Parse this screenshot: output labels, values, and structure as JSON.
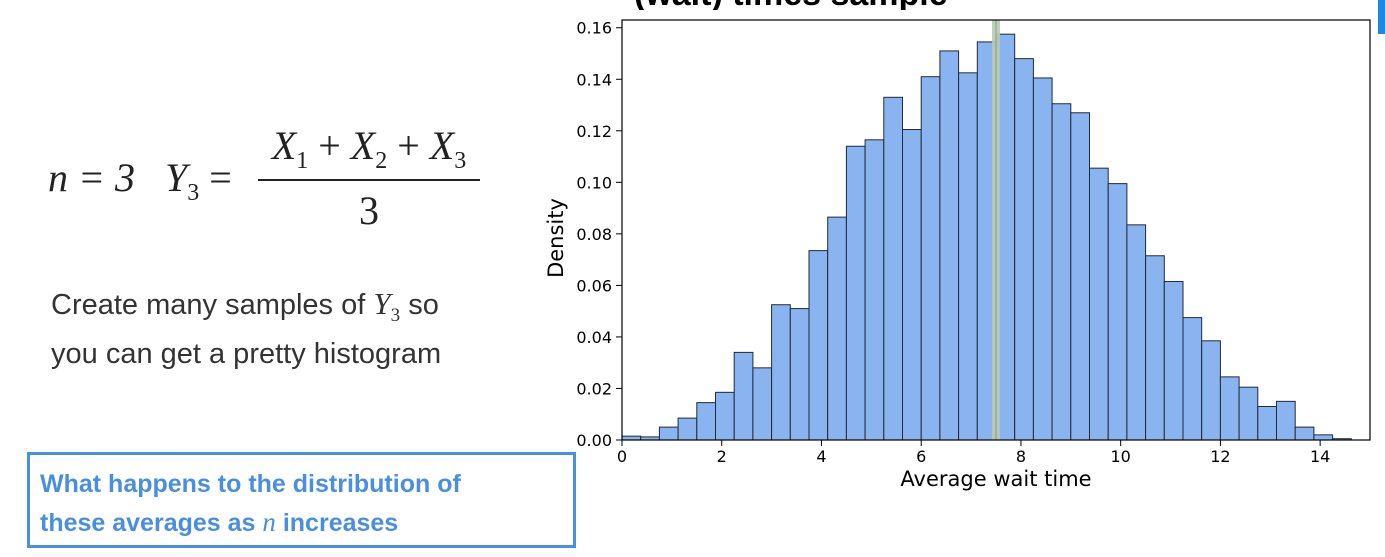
{
  "slide": {
    "title_fragment": "(wait) times sample",
    "formula": {
      "n_label": "n = 3",
      "lhs": "Y",
      "lhs_sub": "3",
      "numerator_terms": [
        {
          "var": "X",
          "sub": "1"
        },
        {
          "var": "X",
          "sub": "2"
        },
        {
          "var": "X",
          "sub": "3"
        }
      ],
      "operator": "+",
      "denominator": "3"
    },
    "description": {
      "before": "Create many samples of",
      "var": "Y",
      "var_sub": "3",
      "after": "so",
      "line2": "you can get a pretty histogram"
    },
    "question": {
      "line1": "What happens to the distribution of",
      "line2_before": "these averages as",
      "line2_var": "n",
      "line2_after": "increases"
    },
    "accent_color": "#1e88e5",
    "question_color": "#4a8ee0"
  },
  "chart_data": {
    "type": "bar",
    "title": "",
    "xlabel": "Average wait time",
    "ylabel": "Density",
    "xlim": [
      0,
      15
    ],
    "ylim": [
      0,
      0.163
    ],
    "bin_width": 0.375,
    "bin_start": 0,
    "values": [
      0.0015,
      0.0012,
      0.005,
      0.0085,
      0.0145,
      0.0185,
      0.034,
      0.028,
      0.0525,
      0.051,
      0.0735,
      0.0865,
      0.114,
      0.1165,
      0.133,
      0.1205,
      0.141,
      0.151,
      0.1425,
      0.1545,
      0.1575,
      0.148,
      0.1405,
      0.1305,
      0.127,
      0.1055,
      0.0995,
      0.0835,
      0.0715,
      0.0615,
      0.0475,
      0.0385,
      0.0245,
      0.0205,
      0.013,
      0.015,
      0.005,
      0.002,
      0.0005
    ],
    "x_ticks": [
      "0",
      "2",
      "4",
      "6",
      "8",
      "10",
      "12",
      "14"
    ],
    "y_ticks": [
      "0.00",
      "0.02",
      "0.04",
      "0.06",
      "0.08",
      "0.10",
      "0.12",
      "0.14",
      "0.16"
    ],
    "mean_line": 7.5,
    "bar_color": "#8ab4f0",
    "bar_edge": "#1f2a3a",
    "mean_line_color": "#b9c9b5",
    "grid": false
  }
}
